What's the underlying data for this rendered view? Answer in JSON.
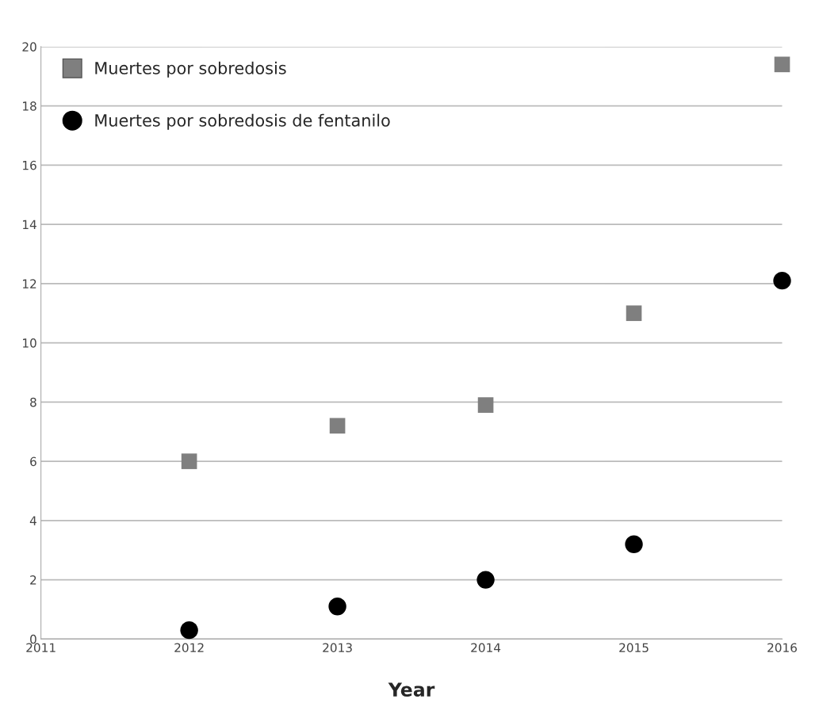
{
  "chart_data": {
    "type": "scatter",
    "xlabel": "Year",
    "x": [
      2012,
      2013,
      2014,
      2015,
      2016
    ],
    "series": [
      {
        "name": "Muertes por sobredosis",
        "color": "#7f7f7f",
        "marker": "square",
        "values": [
          6.0,
          7.2,
          7.9,
          11.0,
          19.4
        ]
      },
      {
        "name": "Muertes por sobredosis de fentanilo",
        "color": "#000000",
        "marker": "circle",
        "values": [
          0.3,
          1.1,
          2.0,
          3.2,
          12.1
        ]
      }
    ],
    "xlim": [
      2011,
      2016
    ],
    "xticks": [
      2011,
      2012,
      2013,
      2014,
      2015,
      2016
    ],
    "ylim": [
      0,
      20
    ],
    "yticks": [
      0,
      2,
      4,
      6,
      8,
      10,
      12,
      14,
      16,
      18,
      20
    ],
    "grid": "y",
    "legend": "top left"
  }
}
